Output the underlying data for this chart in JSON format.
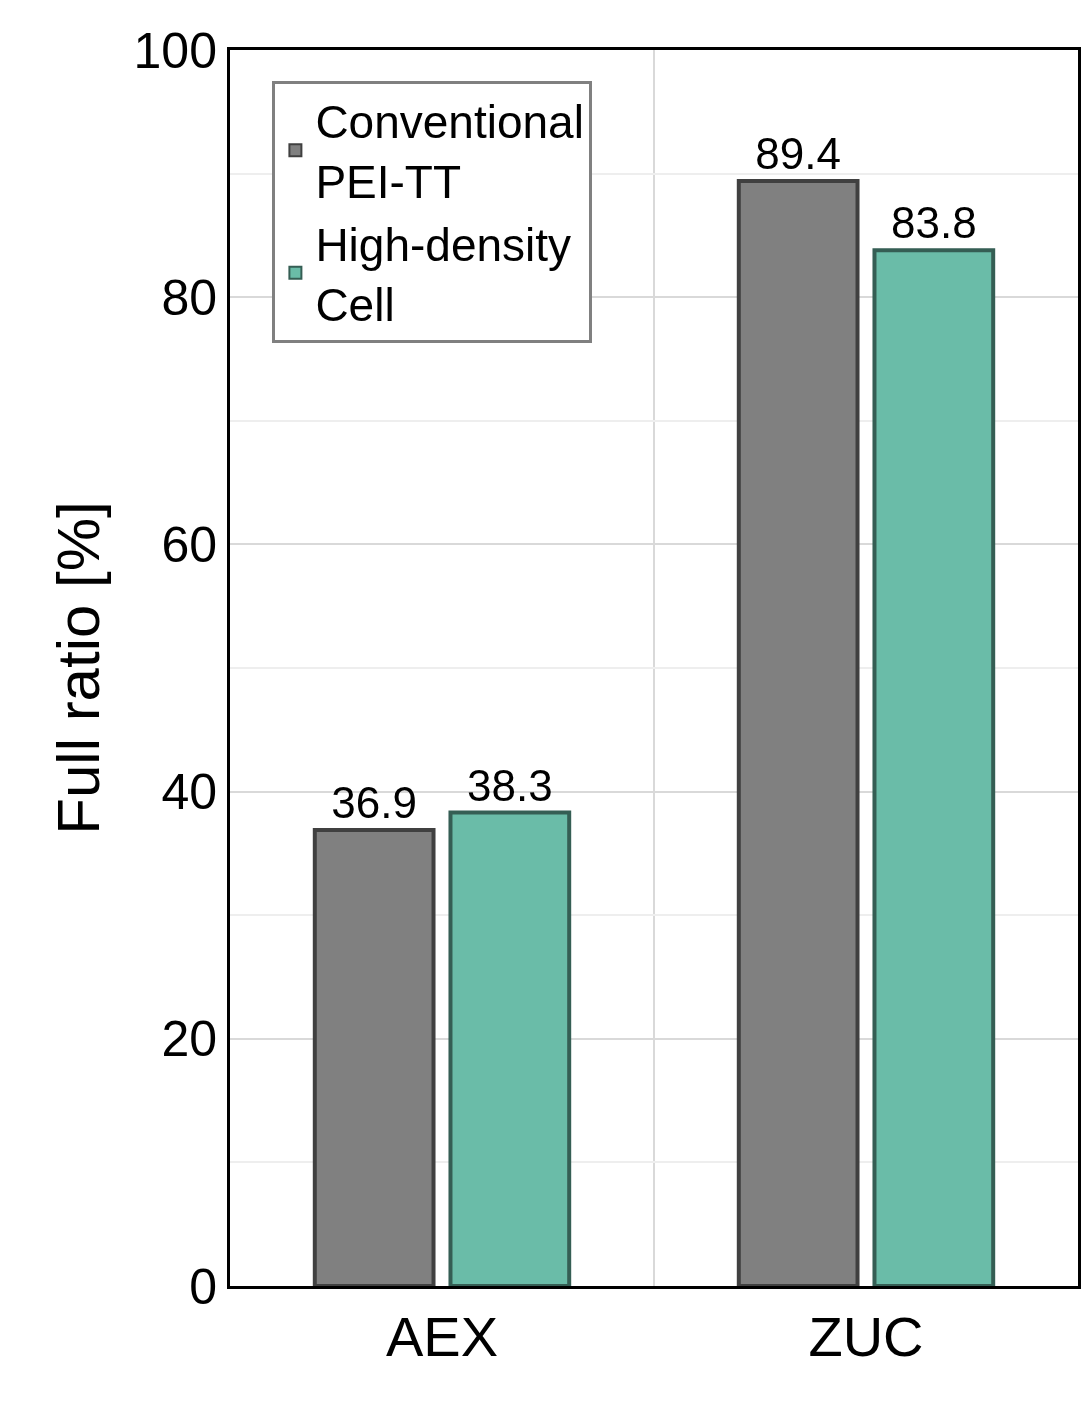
{
  "chart_data": {
    "type": "bar",
    "ylabel": "Full ratio [%]",
    "categories": [
      "AEX",
      "ZUC"
    ],
    "series": [
      {
        "name": "Conventional PEI-TT",
        "color": "#808080",
        "values": [
          36.9,
          89.4
        ]
      },
      {
        "name": "High-density Cell",
        "color": "#6abca8",
        "values": [
          38.3,
          83.8
        ]
      }
    ],
    "ylim": [
      0,
      100
    ],
    "yticks": [
      0,
      20,
      40,
      60,
      80,
      100
    ],
    "grid": true,
    "legend": "top left",
    "data_labels": true
  }
}
